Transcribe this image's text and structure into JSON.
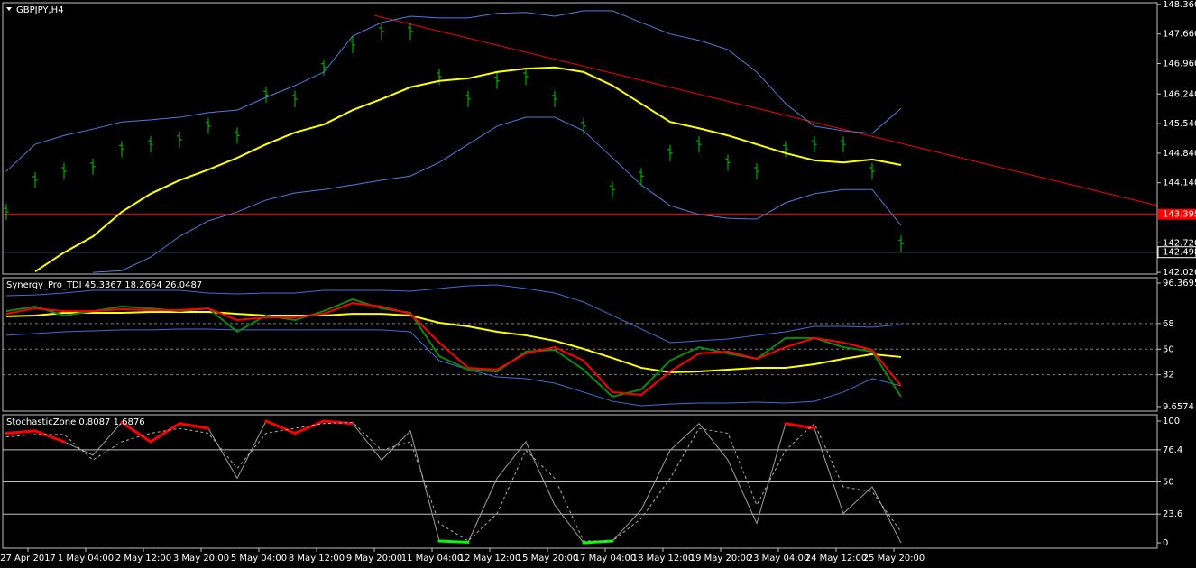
{
  "chart_data": [
    {
      "type": "ohlc",
      "title": "GBPJPY,H4",
      "x": [
        0,
        4,
        8,
        12,
        16,
        20,
        24,
        28,
        32,
        36,
        40,
        44,
        48,
        52,
        56,
        60,
        64,
        68,
        72,
        76,
        80,
        84,
        88,
        92,
        96,
        100,
        104,
        108,
        112,
        116,
        120,
        124
      ],
      "xlim": [
        -0.5,
        159.5
      ],
      "xticks": [
        {
          "value": 3,
          "label": "27 Apr 2017"
        },
        {
          "value": 11,
          "label": "1 May 04:00"
        },
        {
          "value": 19,
          "label": "2 May 12:00"
        },
        {
          "value": 27,
          "label": "3 May 20:00"
        },
        {
          "value": 35,
          "label": "5 May 04:00"
        },
        {
          "value": 43,
          "label": "8 May 12:00"
        },
        {
          "value": 51,
          "label": "9 May 20:00"
        },
        {
          "value": 59,
          "label": "11 May 04:00"
        },
        {
          "value": 67,
          "label": "12 May 12:00"
        },
        {
          "value": 75,
          "label": "15 May 20:00"
        },
        {
          "value": 83,
          "label": "17 May 04:00"
        },
        {
          "value": 91,
          "label": "18 May 12:00"
        },
        {
          "value": 99,
          "label": "19 May 20:00"
        },
        {
          "value": 107,
          "label": "23 May 04:00"
        },
        {
          "value": 115,
          "label": "24 May 12:00"
        },
        {
          "value": 123,
          "label": "25 May 20:00"
        }
      ],
      "ylim": [
        141.98,
        148.4
      ],
      "yticks": [
        {
          "value": 148.36,
          "label": "148.360"
        },
        {
          "value": 147.66,
          "label": "147.660"
        },
        {
          "value": 146.96,
          "label": "146.960"
        },
        {
          "value": 146.24,
          "label": "146.240"
        },
        {
          "value": 145.54,
          "label": "145.540"
        },
        {
          "value": 144.84,
          "label": "144.840"
        },
        {
          "value": 144.14,
          "label": "144.140"
        },
        {
          "value": 142.72,
          "label": "142.720"
        },
        {
          "value": 142.02,
          "label": "142.020"
        }
      ],
      "series": [
        {
          "kind": "bars",
          "color": "#00c800",
          "values": [
            143.45,
            144.2,
            144.41,
            144.52,
            144.94,
            145.05,
            145.16,
            145.48,
            145.26,
            146.22,
            146.12,
            146.87,
            147.4,
            147.72,
            147.72,
            146.65,
            146.12,
            146.55,
            146.65,
            146.12,
            145.48,
            143.98,
            144.3,
            144.84,
            145.05,
            144.62,
            144.41,
            144.94,
            145.05,
            145.05,
            144.41,
            142.7
          ]
        },
        {
          "kind": "line",
          "color": "#ffff00",
          "width": 2,
          "values": [
            null,
            142.04,
            142.49,
            142.87,
            143.45,
            143.88,
            144.2,
            144.45,
            144.73,
            145.05,
            145.33,
            145.52,
            145.86,
            146.12,
            146.4,
            146.55,
            146.61,
            146.76,
            146.84,
            146.87,
            146.76,
            146.44,
            146.01,
            145.58,
            145.43,
            145.26,
            145.05,
            144.84,
            144.67,
            144.62,
            144.69,
            144.56
          ]
        },
        {
          "kind": "line",
          "color": "#4d7fe0",
          "width": 1,
          "values": [
            144.41,
            145.05,
            145.26,
            145.41,
            145.58,
            145.63,
            145.69,
            145.8,
            145.86,
            146.16,
            146.44,
            146.76,
            147.61,
            147.93,
            148.08,
            148.04,
            148.04,
            148.15,
            148.17,
            148.08,
            148.21,
            148.21,
            147.93,
            147.66,
            147.51,
            147.29,
            146.76,
            146.01,
            145.48,
            145.37,
            145.31,
            145.9
          ]
        },
        {
          "kind": "line",
          "color": "#4d7fe0",
          "width": 1,
          "values": [
            null,
            null,
            null,
            142.02,
            142.06,
            142.38,
            142.87,
            143.24,
            143.45,
            143.73,
            143.9,
            143.98,
            144.09,
            144.2,
            144.3,
            144.62,
            145.05,
            145.48,
            145.69,
            145.69,
            145.37,
            144.73,
            144.09,
            143.6,
            143.39,
            143.3,
            143.28,
            143.67,
            143.88,
            143.98,
            143.98,
            143.13
          ]
        }
      ],
      "trendline": {
        "x": [
          51,
          159.5
        ],
        "values": [
          148.1,
          143.6
        ],
        "color": "#ff0000"
      },
      "hlines": [
        {
          "value": 143.395,
          "label": "143.395",
          "color": "#ff0000"
        },
        {
          "value": 142.498,
          "label": "142.498",
          "color": "#6b7f9f"
        }
      ]
    },
    {
      "type": "line",
      "title": "Synergy_Pro_TDI 45.3367 18.2664 26.0487",
      "ylim": [
        6.48,
        100.17
      ],
      "yticks": [
        96.3695,
        68,
        50,
        32,
        9.6574
      ],
      "series": [
        {
          "color": "#3f6fd8",
          "width": 1,
          "values": [
            87.5,
            88.1,
            89.4,
            91.3,
            91.3,
            91.3,
            91.3,
            89.4,
            88.8,
            89.4,
            89.4,
            91.3,
            91.3,
            91.3,
            90.7,
            92.6,
            94.5,
            95.1,
            92.6,
            89.4,
            83.1,
            73.6,
            64.1,
            54.6,
            55.9,
            57.1,
            59.7,
            62.2,
            66.0,
            66.0,
            65.4,
            67.3
          ]
        },
        {
          "color": "#3f6fd8",
          "width": 1,
          "values": [
            59.7,
            60.9,
            62.2,
            62.8,
            63.5,
            63.5,
            64.1,
            64.1,
            63.5,
            63.5,
            63.5,
            63.5,
            63.5,
            63.5,
            62.2,
            42.0,
            35.6,
            30.5,
            29.3,
            26.1,
            19.8,
            13.4,
            10.3,
            11.5,
            12.2,
            12.2,
            12.8,
            12.2,
            13.4,
            19.8,
            29.3,
            24.2
          ]
        },
        {
          "color": "#ffff00",
          "width": 2,
          "values": [
            73.0,
            73.6,
            75.5,
            75.5,
            75.5,
            76.1,
            76.1,
            76.1,
            74.8,
            73.6,
            73.6,
            73.6,
            74.8,
            74.8,
            73.6,
            68.5,
            66.0,
            62.2,
            59.7,
            55.9,
            50.2,
            43.8,
            36.9,
            33.7,
            34.3,
            35.6,
            36.9,
            36.9,
            39.4,
            43.2,
            46.4,
            44.5
          ]
        },
        {
          "color": "#0a8a0a",
          "width": 2,
          "values": [
            76.7,
            79.9,
            73.6,
            76.7,
            79.9,
            78.6,
            76.7,
            78.6,
            62.2,
            73.6,
            70.4,
            76.7,
            85.0,
            78.6,
            75.5,
            45.1,
            35.6,
            34.3,
            48.3,
            49.5,
            35.6,
            16.6,
            21.7,
            42.0,
            51.4,
            47.0,
            43.2,
            57.8,
            57.8,
            51.4,
            48.3,
            16.6
          ]
        },
        {
          "color": "#ff0000",
          "width": 2,
          "values": [
            74.8,
            78.6,
            76.7,
            76.7,
            78.0,
            77.4,
            77.4,
            78.6,
            70.4,
            72.3,
            72.3,
            74.8,
            82.4,
            79.9,
            74.8,
            54.6,
            36.9,
            35.6,
            47.0,
            51.4,
            42.0,
            19.8,
            17.9,
            34.3,
            47.0,
            48.3,
            43.2,
            51.4,
            57.8,
            54.6,
            49.5,
            24.2
          ]
        }
      ]
    },
    {
      "type": "line",
      "title": "StochasticZone 0.8087 1.6876",
      "ylim": [
        -4.4,
        105.2
      ],
      "yticks": [
        100,
        76.4,
        50,
        23.6,
        0
      ],
      "series": [
        {
          "color": "#a0a0a0",
          "high_color": "#ff0000",
          "low_color": "#00ff00",
          "width": 1,
          "zone_width": 3,
          "values": [
            90,
            92,
            83,
            72,
            99,
            83,
            98,
            94,
            53,
            100,
            90,
            100,
            98,
            68,
            92,
            1.5,
            0.5,
            53,
            83,
            31,
            0,
            1.5,
            27,
            76,
            98,
            68,
            16,
            98,
            94,
            24,
            46,
            0
          ]
        },
        {
          "color": "#b0b0b0",
          "width": 1,
          "dash": "3,3",
          "values": [
            87,
            89,
            89,
            68,
            83,
            90,
            94,
            90,
            61,
            90,
            94,
            98,
            99,
            76,
            83,
            16,
            1.5,
            24,
            76,
            53,
            1.5,
            1.5,
            20,
            53,
            94,
            90,
            31,
            76,
            98,
            46,
            42,
            9
          ]
        }
      ]
    }
  ]
}
